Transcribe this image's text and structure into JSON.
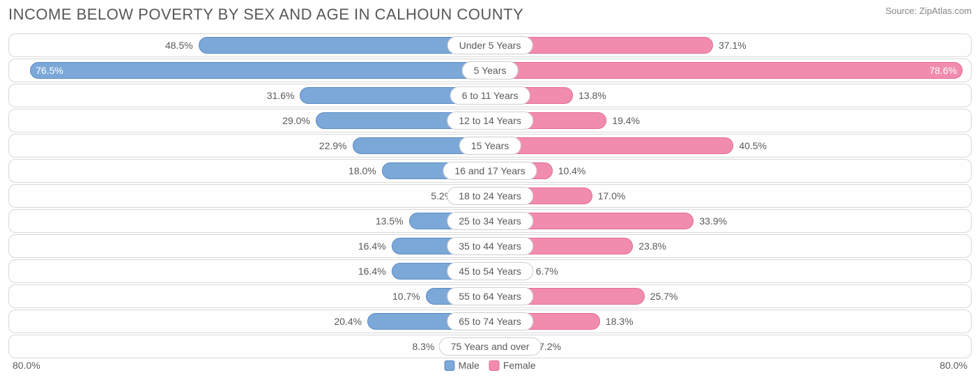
{
  "title": "INCOME BELOW POVERTY BY SEX AND AGE IN CALHOUN COUNTY",
  "source": "Source: ZipAtlas.com",
  "chart": {
    "type": "diverging-bar",
    "axis_max": 80.0,
    "axis_label_left": "80.0%",
    "axis_label_right": "80.0%",
    "inside_label_threshold": 70.0,
    "male_color": "#7ca8d8",
    "male_border": "#5a8bc4",
    "female_color": "#f18cae",
    "female_border": "#e36a94",
    "row_border": "#d8d8d8",
    "row_bg": "#fefefe",
    "text_color": "#5a5a5a",
    "title_color": "#575757",
    "source_color": "#848484",
    "value_inside_color": "#ffffff",
    "legend": {
      "male": "Male",
      "female": "Female"
    },
    "rows": [
      {
        "label": "Under 5 Years",
        "male": 48.5,
        "female": 37.1
      },
      {
        "label": "5 Years",
        "male": 76.5,
        "female": 78.6
      },
      {
        "label": "6 to 11 Years",
        "male": 31.6,
        "female": 13.8
      },
      {
        "label": "12 to 14 Years",
        "male": 29.0,
        "female": 19.4
      },
      {
        "label": "15 Years",
        "male": 22.9,
        "female": 40.5
      },
      {
        "label": "16 and 17 Years",
        "male": 18.0,
        "female": 10.4
      },
      {
        "label": "18 to 24 Years",
        "male": 5.2,
        "female": 17.0
      },
      {
        "label": "25 to 34 Years",
        "male": 13.5,
        "female": 33.9
      },
      {
        "label": "35 to 44 Years",
        "male": 16.4,
        "female": 23.8
      },
      {
        "label": "45 to 54 Years",
        "male": 16.4,
        "female": 6.7
      },
      {
        "label": "55 to 64 Years",
        "male": 10.7,
        "female": 25.7
      },
      {
        "label": "65 to 74 Years",
        "male": 20.4,
        "female": 18.3
      },
      {
        "label": "75 Years and over",
        "male": 8.3,
        "female": 7.2
      }
    ]
  }
}
